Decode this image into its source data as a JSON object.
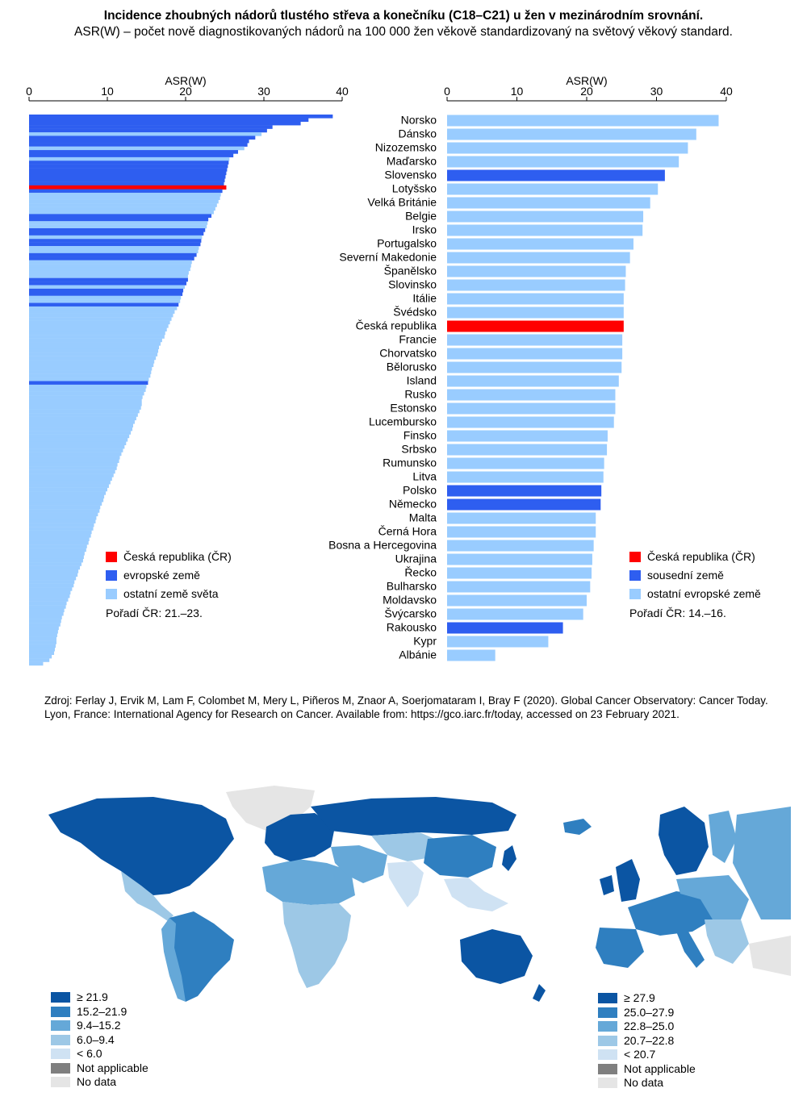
{
  "title": "Incidence zhoubných nádorů tlustého střeva a konečníku (C18–C21) u žen v mezinárodním srovnání.",
  "subtitle": "ASR(W) – počet nově diagnostikovaných nádorů na 100 000 žen věkově standardizovaný na světový věkový standard.",
  "colors": {
    "cz": "#ff0000",
    "highlight": "#2e5ef0",
    "other": "#99ccff",
    "map": [
      "#0b55a3",
      "#2f7fc0",
      "#65a8d8",
      "#9dc8e6",
      "#cfe2f3",
      "#7f7f7f",
      "#e5e5e5"
    ]
  },
  "chart_data": [
    {
      "type": "bar",
      "orientation": "horizontal",
      "xlabel": "ASR(W)",
      "xlim": [
        0,
        40
      ],
      "xticks": [
        0,
        10,
        20,
        30,
        40
      ],
      "legend": [
        {
          "label": "Česká republika (ČR)",
          "color": "#ff0000"
        },
        {
          "label": "evropské země",
          "color": "#2e5ef0"
        },
        {
          "label": "ostatní země světa",
          "color": "#99ccff"
        }
      ],
      "note": "Pořadí ČR: 21.–23.",
      "values": [
        38.8,
        35.7,
        34.7,
        31.1,
        30.4,
        29.7,
        28.9,
        28.1,
        27.9,
        27.5,
        26.7,
        26.1,
        25.6,
        25.5,
        25.4,
        25.3,
        25.2,
        25.1,
        25.0,
        24.9,
        25.2,
        24.7,
        24.5,
        24.4,
        24.2,
        24.0,
        23.8,
        23.6,
        23.3,
        22.9,
        22.8,
        22.7,
        22.5,
        22.3,
        22.1,
        22.0,
        21.9,
        21.7,
        21.6,
        21.4,
        21.1,
        20.8,
        20.7,
        20.6,
        20.4,
        20.3,
        20.3,
        20.1,
        19.9,
        19.7,
        19.6,
        19.4,
        19.3,
        19.1,
        18.9,
        18.6,
        18.4,
        18.2,
        18.0,
        17.8,
        17.6,
        17.4,
        17.3,
        17.0,
        16.8,
        16.6,
        16.5,
        16.4,
        16.2,
        16.0,
        15.9,
        15.7,
        15.6,
        15.5,
        15.3,
        15.2,
        15.0,
        14.9,
        14.7,
        14.5,
        14.4,
        14.4,
        14.3,
        14.1,
        13.9,
        13.7,
        13.5,
        13.3,
        13.2,
        13.0,
        12.8,
        12.6,
        12.4,
        12.2,
        12.0,
        11.8,
        11.6,
        11.5,
        11.3,
        11.2,
        11.0,
        10.8,
        10.6,
        10.4,
        10.2,
        10.0,
        9.8,
        9.6,
        9.5,
        9.3,
        9.1,
        9.0,
        8.8,
        8.6,
        8.5,
        8.3,
        8.2,
        8.0,
        7.9,
        7.7,
        7.6,
        7.4,
        7.3,
        7.1,
        7.0,
        6.9,
        6.7,
        6.5,
        6.3,
        6.2,
        6.0,
        5.8,
        5.7,
        5.5,
        5.3,
        5.2,
        5.0,
        4.8,
        4.7,
        4.5,
        4.4,
        4.2,
        4.1,
        4.0,
        3.8,
        3.7,
        3.6,
        3.5,
        3.5,
        3.4,
        3.3,
        3.2,
        2.9,
        2.6,
        1.8
      ],
      "highlight_index": [
        0,
        1,
        2,
        3,
        4,
        6,
        7,
        8,
        10,
        11,
        13,
        14,
        15,
        16,
        17,
        18,
        19,
        21,
        28,
        29,
        32,
        33,
        35,
        36,
        39,
        40,
        46,
        47,
        49,
        50,
        53,
        75
      ],
      "cz_index": 20
    },
    {
      "type": "bar",
      "orientation": "horizontal",
      "xlabel": "ASR(W)",
      "xlim": [
        0,
        40
      ],
      "xticks": [
        0,
        10,
        20,
        30,
        40
      ],
      "legend": [
        {
          "label": "Česká republika (ČR)",
          "color": "#ff0000"
        },
        {
          "label": "sousední země",
          "color": "#2e5ef0"
        },
        {
          "label": "ostatní evropské země",
          "color": "#99ccff"
        }
      ],
      "note": "Pořadí ČR: 14.–16.",
      "categories": [
        "Norsko",
        "Dánsko",
        "Nizozemsko",
        "Maďarsko",
        "Slovensko",
        "Lotyšsko",
        "Velká Británie",
        "Belgie",
        "Irsko",
        "Portugalsko",
        "Severní Makedonie",
        "Španělsko",
        "Slovinsko",
        "Itálie",
        "Švédsko",
        "Česká republika",
        "Francie",
        "Chorvatsko",
        "Bělorusko",
        "Island",
        "Rusko",
        "Estonsko",
        "Lucembursko",
        "Finsko",
        "Srbsko",
        "Rumunsko",
        "Litva",
        "Polsko",
        "Německo",
        "Malta",
        "Černá Hora",
        "Bosna a Hercegovina",
        "Ukrajina",
        "Řecko",
        "Bulharsko",
        "Moldavsko",
        "Švýcarsko",
        "Rakousko",
        "Kypr",
        "Albánie"
      ],
      "values": [
        38.9,
        35.7,
        34.5,
        33.2,
        31.2,
        30.2,
        29.1,
        28.1,
        28.0,
        26.7,
        26.2,
        25.6,
        25.5,
        25.3,
        25.3,
        25.3,
        25.1,
        25.1,
        25.0,
        24.6,
        24.1,
        24.1,
        23.9,
        23.0,
        22.9,
        22.5,
        22.4,
        22.1,
        22.0,
        21.3,
        21.3,
        21.0,
        20.8,
        20.7,
        20.5,
        20.0,
        19.5,
        16.6,
        14.5,
        6.9
      ],
      "group": [
        "other",
        "other",
        "other",
        "other",
        "neighbour",
        "other",
        "other",
        "other",
        "other",
        "other",
        "other",
        "other",
        "other",
        "other",
        "other",
        "cz",
        "other",
        "other",
        "other",
        "other",
        "other",
        "other",
        "other",
        "other",
        "other",
        "other",
        "other",
        "neighbour",
        "neighbour",
        "other",
        "other",
        "other",
        "other",
        "other",
        "other",
        "other",
        "other",
        "neighbour",
        "other",
        "other"
      ]
    }
  ],
  "source": "Zdroj: Ferlay J, Ervik M, Lam F, Colombet M, Mery L, Piñeros M, Znaor A, Soerjomataram I, Bray F (2020). Global Cancer Observatory: Cancer Today. Lyon, France: International Agency for Research on Cancer. Available from: https://gco.iarc.fr/today, accessed on 23 February 2021.",
  "map_world": {
    "legend": [
      "≥ 21.9",
      "15.2–21.9",
      "9.4–15.2",
      "6.0–9.4",
      "< 6.0",
      "Not applicable",
      "No data"
    ]
  },
  "map_europe": {
    "legend": [
      "≥ 27.9",
      "25.0–27.9",
      "22.8–25.0",
      "20.7–22.8",
      "< 20.7",
      "Not applicable",
      "No data"
    ]
  }
}
